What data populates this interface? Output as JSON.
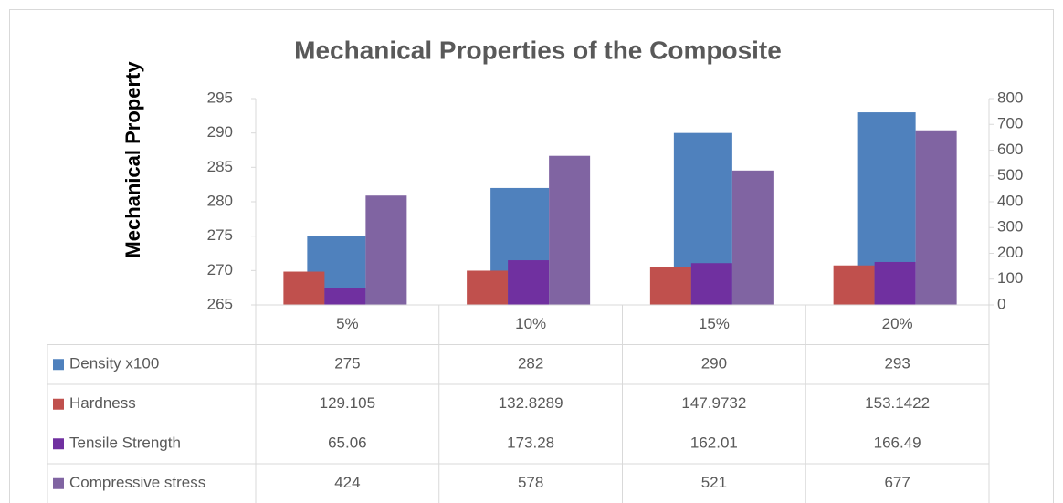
{
  "chart_data": {
    "type": "bar",
    "title": "Mechanical Properties of the Composite",
    "y_label": "Mechanical Property",
    "categories": [
      "5%",
      "10%",
      "15%",
      "20%"
    ],
    "series": [
      {
        "name": "Density x100",
        "color": "#4f81bd",
        "values": [
          275,
          282,
          290,
          293
        ]
      },
      {
        "name": "Hardness",
        "color": "#c0504d",
        "axis": "y2",
        "values": [
          129.105,
          132.8289,
          147.9732,
          153.1422
        ]
      },
      {
        "name": "Tensile Strength",
        "color": "#7030a0",
        "axis": "y2",
        "values": [
          65.06,
          173.28,
          162.01,
          166.49
        ]
      },
      {
        "name": "Compressive stress",
        "color": "#8064a2",
        "axis": "y2",
        "values": [
          424,
          578,
          521,
          677
        ]
      }
    ],
    "ylim": [
      265,
      295
    ],
    "yticks": [
      265,
      270,
      275,
      280,
      285,
      290,
      295
    ],
    "y2lim": [
      0,
      800
    ],
    "y2ticks": [
      0,
      100,
      200,
      300,
      400,
      500,
      600,
      700,
      800
    ],
    "grid": false
  }
}
